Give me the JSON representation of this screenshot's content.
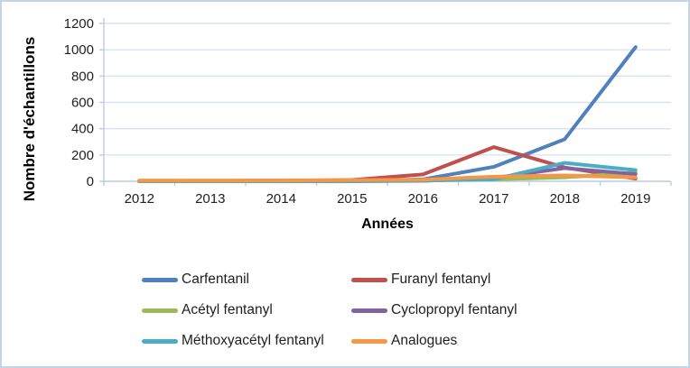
{
  "colors": {
    "frame_border": "#c5d4e9",
    "axis_line": "#bacce4",
    "gridline": "#d9e2f1",
    "tick_text": "#1f1f1f",
    "title_text": "#000000"
  },
  "chart_data": {
    "type": "line",
    "title": "",
    "xlabel": "Années",
    "ylabel": "Nombre d'échantillons",
    "categories": [
      "2012",
      "2013",
      "2014",
      "2015",
      "2016",
      "2017",
      "2018",
      "2019"
    ],
    "ylim": [
      0,
      1200
    ],
    "yticks": [
      0,
      200,
      400,
      600,
      800,
      1000,
      1200
    ],
    "grid": "horizontal",
    "legend_position": "bottom",
    "series": [
      {
        "name": "Carfentanil",
        "color": "#4f81bd",
        "values": [
          0,
          0,
          0,
          2,
          15,
          110,
          320,
          1020
        ]
      },
      {
        "name": "Furanyl fentanyl",
        "color": "#c0504d",
        "values": [
          2,
          2,
          4,
          10,
          52,
          260,
          105,
          20
        ]
      },
      {
        "name": "Acétyl fentanyl",
        "color": "#9bbb59",
        "values": [
          3,
          3,
          6,
          8,
          10,
          14,
          30,
          65
        ]
      },
      {
        "name": "Cyclopropyl fentanyl",
        "color": "#8064a2",
        "values": [
          0,
          0,
          0,
          1,
          3,
          25,
          100,
          55
        ]
      },
      {
        "name": "Méthoxyacétyl fentanyl",
        "color": "#4bacc6",
        "values": [
          0,
          0,
          0,
          1,
          5,
          15,
          140,
          85
        ]
      },
      {
        "name": "Analogues",
        "color": "#f79646",
        "values": [
          6,
          6,
          7,
          9,
          12,
          35,
          45,
          30
        ]
      }
    ]
  }
}
